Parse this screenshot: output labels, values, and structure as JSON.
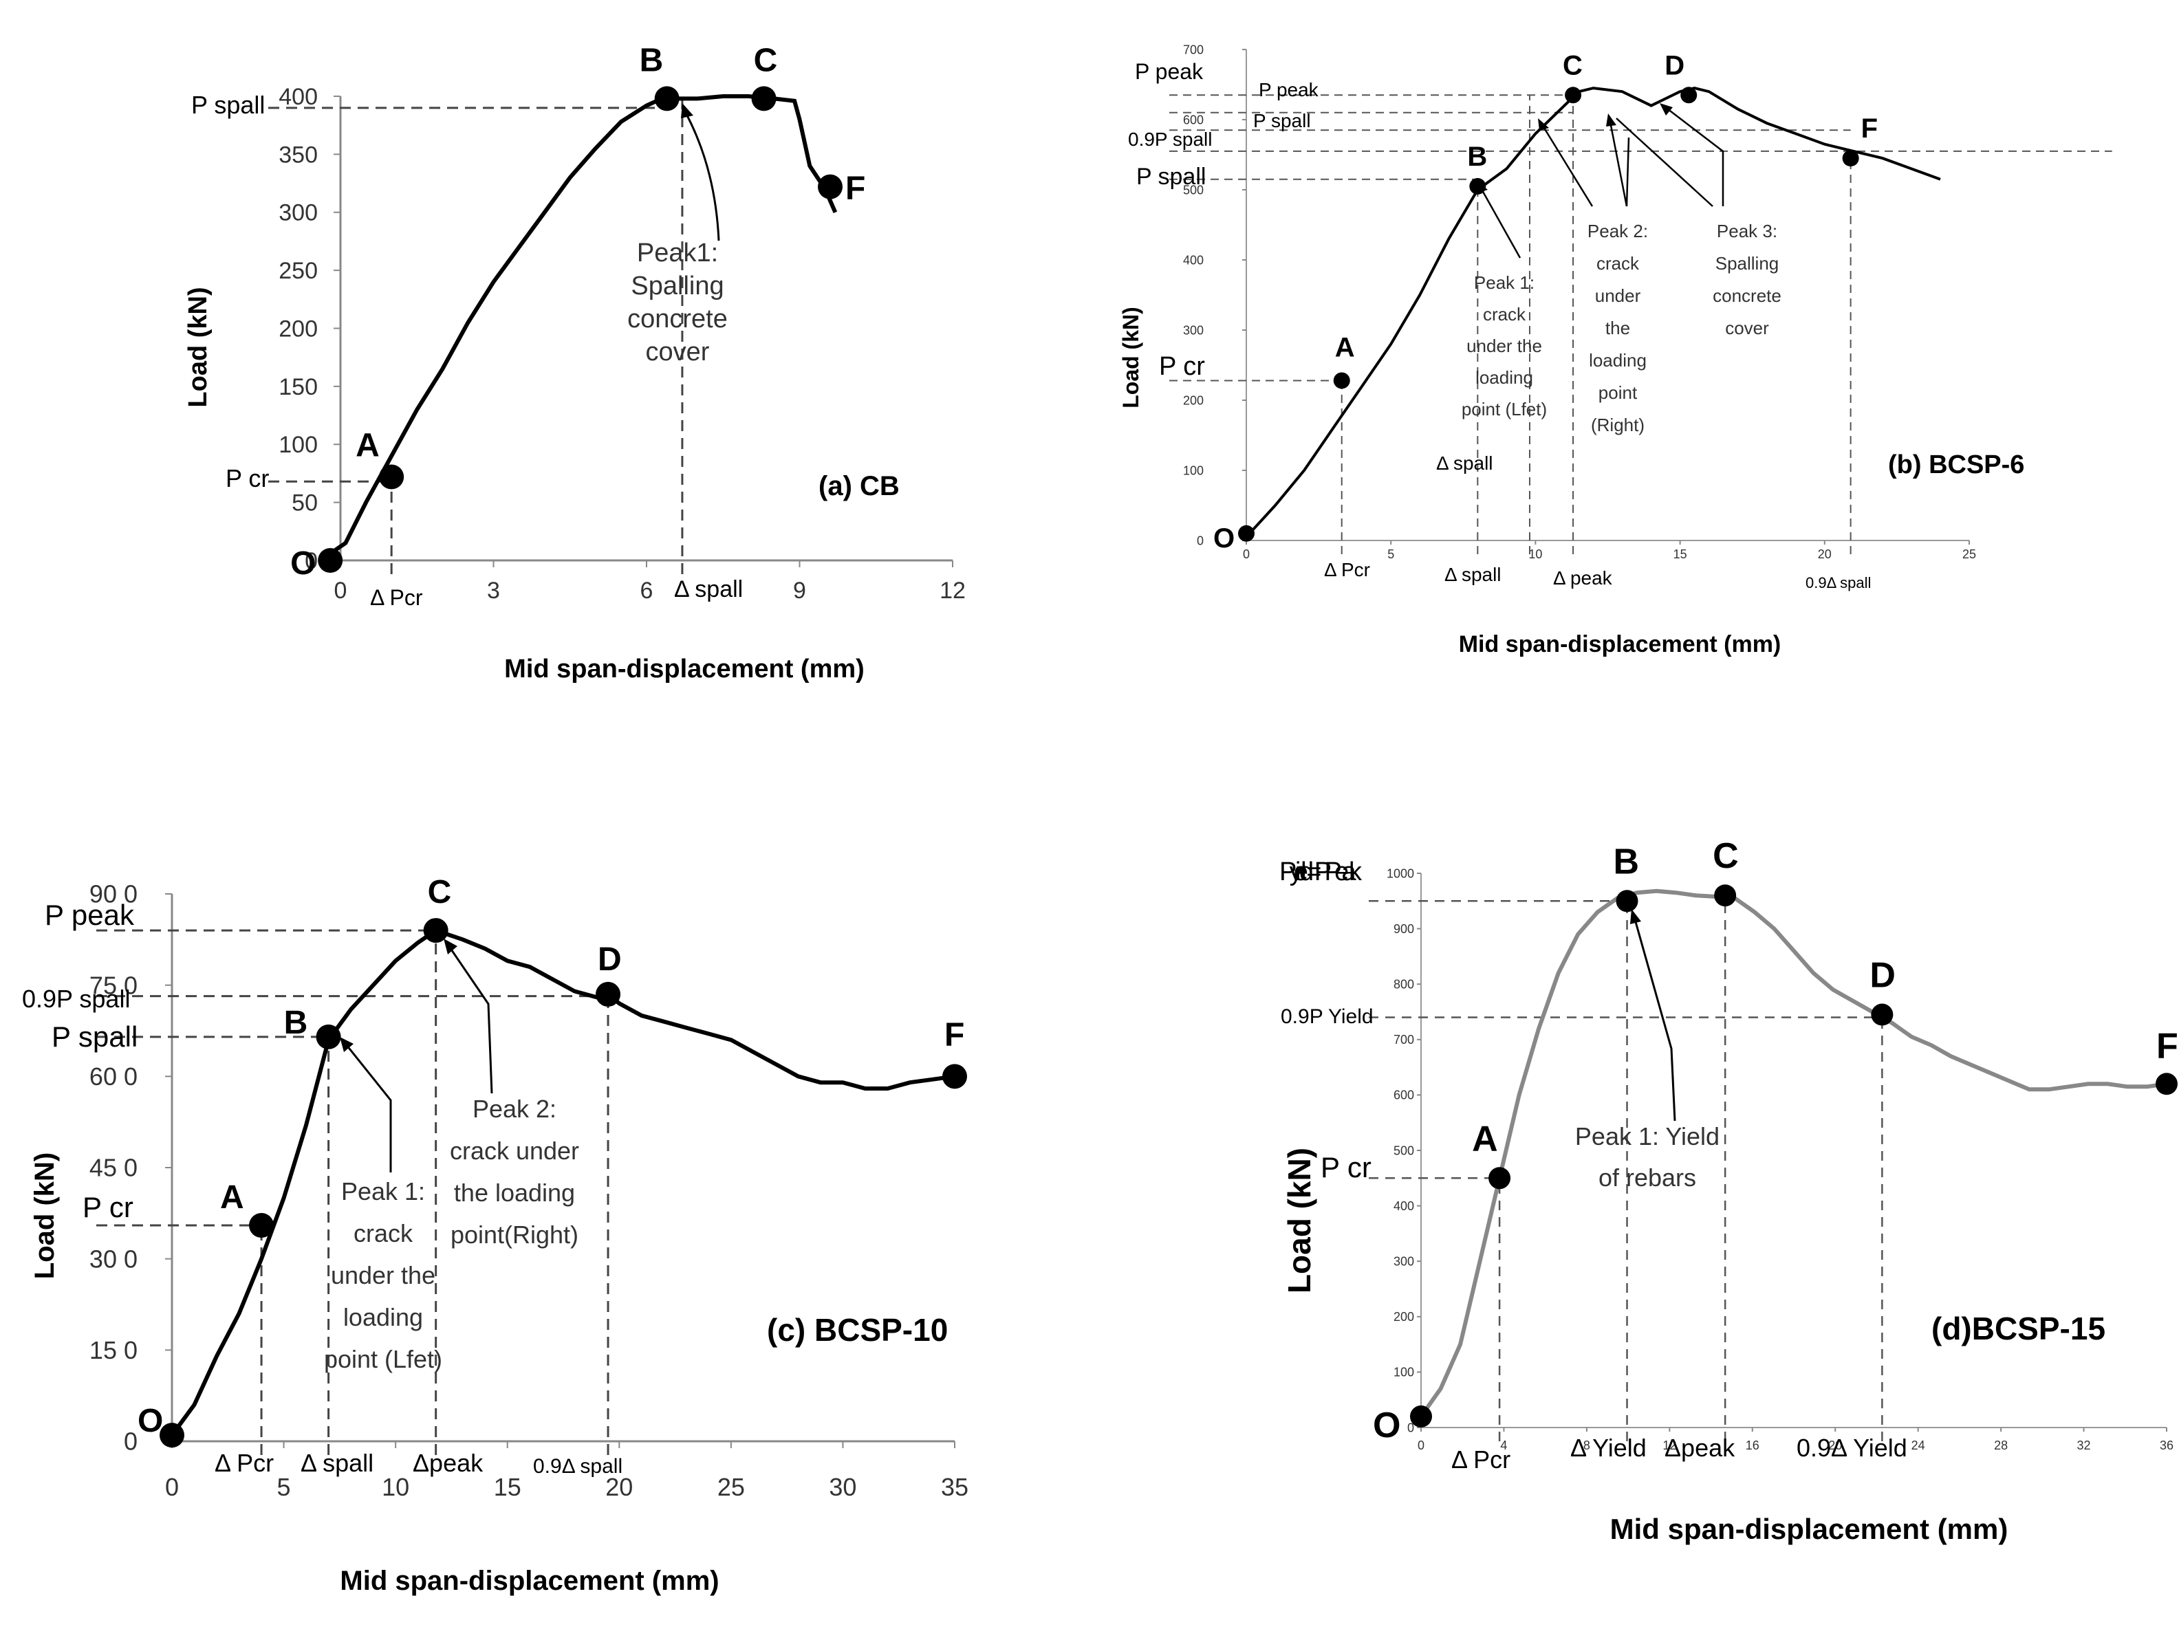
{
  "chart_data": [
    {
      "id": "a",
      "type": "line",
      "panel_label": "(a) CB",
      "xlabel": "Mid span-displacement (mm)",
      "ylabel": "Load (kN)",
      "xlim": [
        0,
        12
      ],
      "ylim": [
        0,
        400
      ],
      "x_ticks": [
        "0",
        "3",
        "6",
        "9",
        "12"
      ],
      "y_ticks": [
        "0",
        "50",
        "100",
        "150",
        "200",
        "250",
        "300",
        "350",
        "400"
      ],
      "grid": false,
      "curve": {
        "x": [
          -0.4,
          0.1,
          0.5,
          1.0,
          1.5,
          2.0,
          2.5,
          3.0,
          3.5,
          4.0,
          4.5,
          5.0,
          5.5,
          6.0,
          6.3,
          6.6,
          7.0,
          7.5,
          8.0,
          8.5,
          8.9,
          9.0,
          9.1,
          9.2,
          9.5,
          9.7
        ],
        "y": [
          0,
          15,
          50,
          90,
          130,
          165,
          205,
          240,
          270,
          300,
          330,
          355,
          378,
          392,
          398,
          398,
          398,
          400,
          400,
          398,
          396,
          380,
          360,
          340,
          320,
          300
        ]
      },
      "points": [
        {
          "label": "O",
          "x": -0.2,
          "y": 0
        },
        {
          "label": "A",
          "x": 1.0,
          "y": 72
        },
        {
          "label": "B",
          "x": 6.4,
          "y": 398
        },
        {
          "label": "C",
          "x": 8.3,
          "y": 398
        },
        {
          "label": "F",
          "x": 9.6,
          "y": 322
        }
      ],
      "ref_lines": [
        {
          "label": "P spall",
          "axis": "y",
          "value": 390
        },
        {
          "label": "P cr",
          "axis": "y",
          "value": 68
        },
        {
          "label": "Δ Pcr",
          "axis": "x",
          "value": 1.0
        },
        {
          "label": "Δ spall",
          "axis": "x",
          "value": 6.7
        }
      ],
      "annotations": [
        "Peak1:",
        "Spalling",
        "concrete",
        "cover"
      ]
    },
    {
      "id": "b",
      "type": "line",
      "panel_label": "(b) BCSP-6",
      "xlabel": "Mid span-displacement (mm)",
      "ylabel": "Load (kN)",
      "xlim": [
        0,
        25
      ],
      "ylim": [
        0,
        700
      ],
      "x_ticks": [
        "0",
        "5",
        "10",
        "15",
        "20",
        "25"
      ],
      "y_ticks": [
        "0",
        "100",
        "200",
        "300",
        "400",
        "500",
        "600",
        "700"
      ],
      "grid": false,
      "curve": {
        "x": [
          0,
          1,
          2,
          3,
          4,
          5,
          6,
          7,
          8,
          9,
          10,
          11,
          11.5,
          12,
          13,
          14,
          15,
          15.5,
          16,
          17,
          18,
          19,
          20,
          21,
          22,
          23,
          24
        ],
        "y": [
          5,
          50,
          100,
          160,
          220,
          280,
          350,
          430,
          500,
          530,
          580,
          620,
          640,
          645,
          640,
          620,
          640,
          645,
          640,
          615,
          595,
          580,
          565,
          555,
          545,
          530,
          515
        ]
      },
      "points": [
        {
          "label": "O",
          "x": 0,
          "y": 10
        },
        {
          "label": "A",
          "x": 3.3,
          "y": 228
        },
        {
          "label": "B",
          "x": 8.0,
          "y": 505
        },
        {
          "label": "C",
          "x": 11.3,
          "y": 635
        },
        {
          "label": "D",
          "x": 15.3,
          "y": 635
        },
        {
          "label": "F",
          "x": 20.9,
          "y": 545
        }
      ],
      "ref_lines": [
        {
          "label": "P peak",
          "axis": "y",
          "value": 635
        },
        {
          "label": "P peak",
          "axis": "y",
          "value": 610
        },
        {
          "label": "P spall",
          "axis": "y",
          "value": 585
        },
        {
          "label": "0.9P spall",
          "axis": "y",
          "value": 555
        },
        {
          "label": "P spall",
          "axis": "y",
          "value": 515
        },
        {
          "label": "P cr",
          "axis": "y",
          "value": 228
        },
        {
          "label": "Δ Pcr",
          "axis": "x",
          "value": 3.3
        },
        {
          "label": "Δ spall",
          "axis": "x",
          "value": 8.0
        },
        {
          "label": "Δ spall",
          "axis": "x",
          "value": 9.8
        },
        {
          "label": "Δ peak",
          "axis": "x",
          "value": 11.3
        },
        {
          "label": "0.9Δ spall",
          "axis": "x",
          "value": 20.9
        }
      ],
      "annotations": [
        [
          "Peak 1:",
          "crack",
          "under the",
          "loading",
          "point (Lfet)"
        ],
        [
          "Peak 2:",
          "crack",
          "under",
          "the",
          "loading",
          "point",
          "(Right)"
        ],
        [
          "Peak 3:",
          "Spalling",
          "concrete",
          "cover"
        ]
      ]
    },
    {
      "id": "c",
      "type": "line",
      "panel_label": "(c) BCSP-10",
      "xlabel": "Mid span-displacement (mm)",
      "ylabel": "Load (kN)",
      "xlim": [
        0,
        35
      ],
      "ylim": [
        0,
        900
      ],
      "x_ticks": [
        "0",
        "5",
        "10",
        "15",
        "20",
        "25",
        "30",
        "35"
      ],
      "y_ticks": [
        "0",
        "15 0",
        "30 0",
        "45 0",
        "60 0",
        "75 0",
        "90 0"
      ],
      "grid": false,
      "curve": {
        "x": [
          0,
          1,
          2,
          3,
          4,
          5,
          6,
          7,
          8,
          9,
          10,
          11,
          11.8,
          13,
          14,
          15,
          16,
          17,
          18,
          19,
          19.5,
          20,
          21,
          22,
          23,
          24,
          25,
          26,
          27,
          28,
          29,
          30,
          31,
          32,
          33,
          34,
          35
        ],
        "y": [
          10,
          60,
          140,
          210,
          300,
          400,
          520,
          660,
          710,
          750,
          790,
          820,
          840,
          825,
          810,
          790,
          780,
          760,
          740,
          730,
          735,
          720,
          700,
          690,
          680,
          670,
          660,
          640,
          620,
          600,
          590,
          590,
          580,
          580,
          590,
          595,
          600
        ]
      },
      "points": [
        {
          "label": "O",
          "x": 0,
          "y": 10
        },
        {
          "label": "A",
          "x": 4.0,
          "y": 355
        },
        {
          "label": "B",
          "x": 7.0,
          "y": 665
        },
        {
          "label": "C",
          "x": 11.8,
          "y": 840
        },
        {
          "label": "D",
          "x": 19.5,
          "y": 735
        },
        {
          "label": "F",
          "x": 35.0,
          "y": 600
        }
      ],
      "ref_lines": [
        {
          "label": "P peak",
          "axis": "y",
          "value": 840
        },
        {
          "label": "0.9P spall",
          "axis": "y",
          "value": 732
        },
        {
          "label": "P spall",
          "axis": "y",
          "value": 665
        },
        {
          "label": "P cr",
          "axis": "y",
          "value": 355
        },
        {
          "label": "Δ Pcr",
          "axis": "x",
          "value": 4.0
        },
        {
          "label": "Δ spall",
          "axis": "x",
          "value": 7.0
        },
        {
          "label": "Δpeak",
          "axis": "x",
          "value": 11.8
        },
        {
          "label": "0.9Δ spall",
          "axis": "x",
          "value": 19.5
        }
      ],
      "annotations": [
        [
          "Peak 1:",
          "crack",
          "under the",
          "loading",
          "point (Lfet)"
        ],
        [
          "Peak 2:",
          "crack under",
          "the loading",
          "point(Right)"
        ]
      ]
    },
    {
      "id": "d",
      "type": "line",
      "panel_label": "(d)BCSP-15",
      "xlabel": "Mid span-displacement (mm)",
      "ylabel": "Load (kN)",
      "xlim": [
        0,
        38
      ],
      "ylim": [
        0,
        1000
      ],
      "x_ticks": [
        "0",
        "4",
        "8",
        "12",
        "16",
        "20",
        "24",
        "28",
        "32",
        "36"
      ],
      "y_ticks": [
        "0",
        "100",
        "200",
        "300",
        "400",
        "500",
        "600",
        "700",
        "800",
        "900",
        "1000"
      ],
      "grid": false,
      "curve": {
        "x": [
          0,
          1,
          2,
          3,
          4,
          5,
          6,
          7,
          8,
          9,
          10,
          11,
          12,
          13,
          14,
          15,
          16,
          17,
          18,
          19,
          20,
          21,
          22,
          23,
          24,
          25,
          26,
          27,
          28,
          29,
          30,
          31,
          32,
          33,
          34,
          35,
          36,
          37,
          38
        ],
        "y": [
          20,
          70,
          150,
          300,
          450,
          600,
          720,
          820,
          890,
          930,
          955,
          965,
          968,
          965,
          960,
          958,
          955,
          930,
          900,
          860,
          820,
          790,
          770,
          750,
          730,
          705,
          690,
          670,
          655,
          640,
          625,
          610,
          610,
          615,
          620,
          620,
          615,
          615,
          620
        ]
      },
      "points": [
        {
          "label": "O",
          "x": 0,
          "y": 20
        },
        {
          "label": "A",
          "x": 4.0,
          "y": 450
        },
        {
          "label": "B",
          "x": 10.5,
          "y": 950
        },
        {
          "label": "C",
          "x": 15.5,
          "y": 960
        },
        {
          "label": "D",
          "x": 23.5,
          "y": 745
        },
        {
          "label": "F",
          "x": 38.0,
          "y": 620
        }
      ],
      "ref_lines": [
        {
          "label": "Pyield =PPeak",
          "axis": "y",
          "value": 950
        },
        {
          "label": "0.9P Yield",
          "axis": "y",
          "value": 740
        },
        {
          "label": "P cr",
          "axis": "y",
          "value": 450
        },
        {
          "label": "Δ Pcr",
          "axis": "x",
          "value": 4.0
        },
        {
          "label": "Δ Yield",
          "axis": "x",
          "value": 10.5
        },
        {
          "label": "Δpeak",
          "axis": "x",
          "value": 15.5
        },
        {
          "label": "0.9Δ Yield",
          "axis": "x",
          "value": 23.5
        }
      ],
      "annotations": [
        [
          "Peak 1: Yield",
          "of rebars"
        ]
      ]
    }
  ]
}
